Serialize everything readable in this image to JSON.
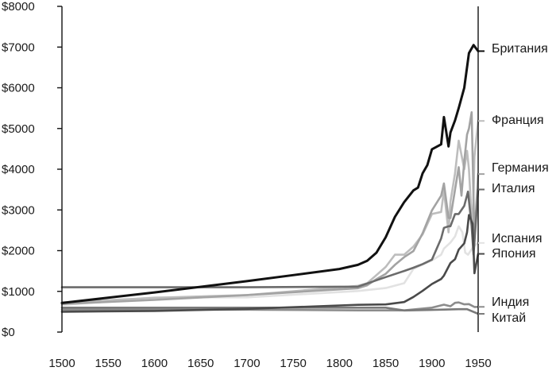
{
  "chart_data": {
    "type": "line",
    "title": "",
    "xlabel": "",
    "ylabel": "",
    "xlim": [
      1500,
      1950
    ],
    "ylim": [
      0,
      8000
    ],
    "grid": false,
    "legend": "right-end labels",
    "x_ticks": [
      "1500",
      "1550",
      "1600",
      "1650",
      "1700",
      "1750",
      "1800",
      "1850",
      "1900",
      "1950"
    ],
    "y_ticks": [
      "$0",
      "$1000",
      "$2000",
      "$3000",
      "$4000",
      "$5000",
      "$6000",
      "$7000",
      "$8000"
    ],
    "series": [
      {
        "name": "Британия",
        "color": "#111111",
        "x": [
          1500,
          1600,
          1700,
          1750,
          1800,
          1820,
          1830,
          1840,
          1850,
          1860,
          1870,
          1880,
          1885,
          1890,
          1895,
          1900,
          1905,
          1910,
          1913,
          1918,
          1920,
          1925,
          1929,
          1935,
          1940,
          1945,
          1950
        ],
        "values": [
          714,
          974,
          1250,
          1400,
          1550,
          1650,
          1750,
          1950,
          2330,
          2830,
          3190,
          3480,
          3550,
          3900,
          4100,
          4490,
          4550,
          4610,
          5280,
          4560,
          4900,
          5200,
          5500,
          6000,
          6850,
          7050,
          6900
        ]
      },
      {
        "name": "Франция",
        "color": "#bdbdbd",
        "x": [
          1500,
          1600,
          1700,
          1820,
          1830,
          1840,
          1850,
          1860,
          1870,
          1880,
          1890,
          1900,
          1910,
          1913,
          1918,
          1920,
          1925,
          1929,
          1935,
          1938,
          1940,
          1944,
          1946,
          1950
        ],
        "values": [
          727,
          841,
          910,
          1135,
          1200,
          1400,
          1600,
          1900,
          1900,
          2100,
          2400,
          2900,
          2950,
          3480,
          2450,
          3200,
          3900,
          4700,
          4000,
          4450,
          4000,
          2400,
          4300,
          5186
        ]
      },
      {
        "name": "Германия",
        "color": "#a3a3a3",
        "x": [
          1500,
          1600,
          1700,
          1820,
          1830,
          1840,
          1850,
          1860,
          1870,
          1880,
          1890,
          1900,
          1910,
          1913,
          1918,
          1920,
          1925,
          1929,
          1932,
          1935,
          1938,
          1940,
          1943,
          1946,
          1950
        ],
        "values": [
          688,
          791,
          910,
          1077,
          1150,
          1300,
          1430,
          1650,
          1840,
          1990,
          2430,
          2990,
          3350,
          3650,
          2800,
          2800,
          3500,
          4050,
          3350,
          4200,
          4850,
          5000,
          5400,
          2300,
          3881
        ]
      },
      {
        "name": "Италия",
        "color": "#6b6b6b",
        "x": [
          1500,
          1600,
          1700,
          1820,
          1850,
          1870,
          1880,
          1890,
          1900,
          1910,
          1913,
          1918,
          1920,
          1925,
          1929,
          1935,
          1939,
          1943,
          1945,
          1950
        ],
        "values": [
          1100,
          1100,
          1100,
          1117,
          1350,
          1500,
          1580,
          1670,
          1780,
          2300,
          2560,
          2600,
          2600,
          2900,
          2900,
          3100,
          3450,
          2600,
          1900,
          3502
        ]
      },
      {
        "name": "Испания",
        "color": "#e2e2e2",
        "x": [
          1500,
          1600,
          1700,
          1820,
          1850,
          1870,
          1880,
          1890,
          1900,
          1910,
          1913,
          1920,
          1925,
          1929,
          1933,
          1936,
          1939,
          1945,
          1950
        ],
        "values": [
          661,
          853,
          853,
          1008,
          1080,
          1200,
          1550,
          1660,
          1760,
          1900,
          2050,
          2200,
          2350,
          2600,
          2450,
          1950,
          1900,
          2100,
          2189
        ]
      },
      {
        "name": "Япония",
        "color": "#4a4a4a",
        "x": [
          1500,
          1600,
          1700,
          1820,
          1850,
          1870,
          1880,
          1890,
          1900,
          1910,
          1913,
          1920,
          1925,
          1929,
          1935,
          1938,
          1940,
          1944,
          1946,
          1950
        ],
        "values": [
          500,
          520,
          570,
          669,
          679,
          737,
          863,
          1012,
          1180,
          1304,
          1387,
          1696,
          1790,
          2026,
          2180,
          2450,
          2874,
          2659,
          1444,
          1921
        ]
      },
      {
        "name": "Индия",
        "color": "#8c8c8c",
        "x": [
          1500,
          1600,
          1700,
          1820,
          1850,
          1870,
          1900,
          1913,
          1920,
          1925,
          1929,
          1935,
          1940,
          1946,
          1950
        ],
        "values": [
          550,
          550,
          550,
          533,
          533,
          533,
          599,
          673,
          635,
          718,
          728,
          680,
          686,
          617,
          619
        ]
      },
      {
        "name": "Китай",
        "color": "#7a7a7a",
        "x": [
          1500,
          1600,
          1700,
          1820,
          1850,
          1870,
          1890,
          1900,
          1913,
          1929,
          1938,
          1950
        ],
        "values": [
          600,
          600,
          600,
          600,
          600,
          530,
          540,
          545,
          552,
          562,
          562,
          448
        ]
      }
    ]
  }
}
